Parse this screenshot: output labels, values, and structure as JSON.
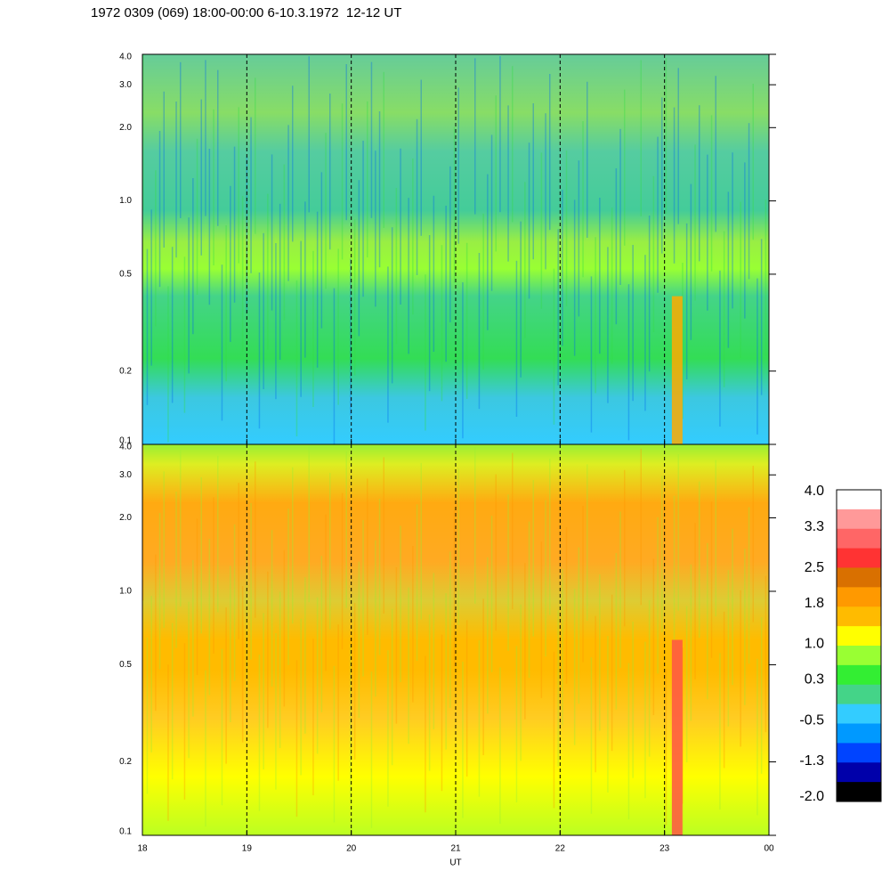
{
  "chart_data": [
    {
      "type": "heatmap",
      "title": "1972 0309 (069) 18:00-00:00 6-10.3.1972  12-12 UT",
      "yscale": "log",
      "ylim": [
        0.1,
        4
      ],
      "yticks": [
        0.1,
        0.2,
        0.5,
        {
          "value": 1,
          "label": "1.0"
        },
        {
          "value": 2,
          "label": "2.0"
        },
        {
          "value": 3,
          "label": "3.0"
        },
        {
          "value": 4,
          "label": "4.0"
        }
      ],
      "xlim": [
        18,
        24
      ],
      "xticks": [
        18,
        19,
        20,
        21,
        22,
        23,
        24
      ]
    },
    {
      "type": "heatmap",
      "xlabel": "UT",
      "yscale": "log",
      "ylim": [
        0.1,
        4
      ],
      "yticks": [
        0.1,
        0.2,
        0.5,
        {
          "value": 1,
          "label": "1.0"
        },
        {
          "value": 2,
          "label": "2.0"
        },
        {
          "value": 3,
          "label": "3.0"
        },
        {
          "value": 4,
          "label": "4.0"
        }
      ],
      "xlim": [
        18,
        24
      ],
      "xticks": [
        18,
        19,
        20,
        21,
        22,
        23,
        {
          "value": 24,
          "label": "00"
        }
      ]
    }
  ],
  "colorbar": {
    "lim": [
      -2,
      4
    ],
    "colors": [
      "#ffffff",
      "#ff9999",
      "#ff6666",
      "#ff3333",
      "#d97000",
      "#ff9900",
      "#ffbb00",
      "#ffff00",
      "#99ff33",
      "#33ee33",
      "#44d488",
      "#33ccff",
      "#0099ff",
      "#0044ff",
      "#0000aa",
      "#000000"
    ],
    "ticks": [
      {
        "value": 4,
        "label": "4.0"
      },
      3.3,
      2.5,
      1.8,
      {
        "value": 1,
        "label": "1.0"
      },
      0.3,
      -0.5,
      -1.3,
      {
        "value": -2,
        "label": "-2.0"
      }
    ]
  }
}
